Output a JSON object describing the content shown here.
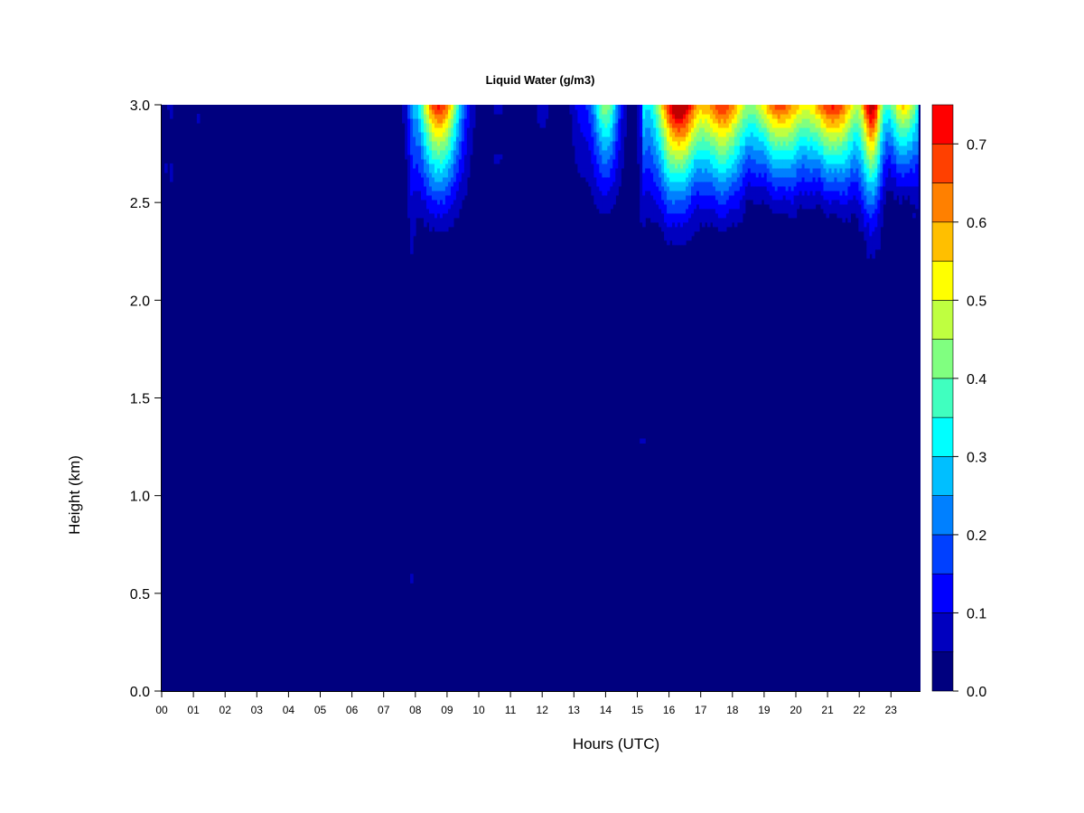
{
  "chart_data": {
    "type": "heatmap",
    "title": "Liquid Water (g/m3)",
    "xlabel": "Hours (UTC)",
    "ylabel": "Height (km)",
    "xlim": [
      0,
      23.85
    ],
    "ylim": [
      0.0,
      3.0
    ],
    "x_tick_labels": [
      "00",
      "01",
      "02",
      "03",
      "04",
      "05",
      "06",
      "07",
      "08",
      "09",
      "10",
      "11",
      "12",
      "13",
      "14",
      "15",
      "16",
      "17",
      "18",
      "19",
      "20",
      "21",
      "22",
      "23"
    ],
    "y_ticks": [
      0.0,
      0.5,
      1.0,
      1.5,
      2.0,
      2.5,
      3.0
    ],
    "y_tick_labels": [
      "0.0",
      "0.5",
      "1.0",
      "1.5",
      "2.0",
      "2.5",
      "3.0"
    ],
    "colorbar": {
      "levels": [
        0.0,
        0.05,
        0.1,
        0.15,
        0.2,
        0.25,
        0.3,
        0.35,
        0.4,
        0.45,
        0.5,
        0.55,
        0.6,
        0.65,
        0.7,
        0.75
      ],
      "colors": [
        "#00007f",
        "#0000bf",
        "#0000ff",
        "#0040ff",
        "#0080ff",
        "#00bfff",
        "#00ffff",
        "#40ffbf",
        "#80ff80",
        "#bfff40",
        "#ffff00",
        "#ffbf00",
        "#ff8000",
        "#ff4000",
        "#ff0000",
        "#bf0000",
        "#7f0000"
      ],
      "tick_values": [
        0.0,
        0.1,
        0.2,
        0.3,
        0.4,
        0.5,
        0.6,
        0.7
      ],
      "tick_labels": [
        "0.0",
        "0.1",
        "0.2",
        "0.3",
        "0.4",
        "0.5",
        "0.6",
        "0.7"
      ]
    },
    "cloud_events": [
      {
        "time": 0.25,
        "width": 0.25,
        "base_km": 2.7,
        "peak": 0.06
      },
      {
        "time": 1.1,
        "width": 0.1,
        "base_km": 2.95,
        "peak": 0.05
      },
      {
        "time": 7.9,
        "width": 0.15,
        "base_km": 0.6,
        "peak": 0.08
      },
      {
        "time": 8.75,
        "width": 0.7,
        "base_km": 2.2,
        "peak": 0.72
      },
      {
        "time": 10.6,
        "width": 0.25,
        "base_km": 2.75,
        "peak": 0.07
      },
      {
        "time": 12.0,
        "width": 0.3,
        "base_km": 2.55,
        "peak": 0.08
      },
      {
        "time": 13.2,
        "width": 0.35,
        "base_km": 2.2,
        "peak": 0.11
      },
      {
        "time": 14.0,
        "width": 0.45,
        "base_km": 2.25,
        "peak": 0.45
      },
      {
        "time": 15.15,
        "width": 0.15,
        "base_km": 1.3,
        "peak": 0.1
      },
      {
        "time": 16.3,
        "width": 0.65,
        "base_km": 2.1,
        "peak": 0.62
      },
      {
        "time": 17.7,
        "width": 0.7,
        "base_km": 2.2,
        "peak": 0.48
      },
      {
        "time": 19.5,
        "width": 0.8,
        "base_km": 2.35,
        "peak": 0.46
      },
      {
        "time": 21.2,
        "width": 0.8,
        "base_km": 2.3,
        "peak": 0.5
      },
      {
        "time": 22.4,
        "width": 0.3,
        "base_km": 2.0,
        "peak": 0.55
      },
      {
        "time": 23.4,
        "width": 0.45,
        "base_km": 2.45,
        "peak": 0.35
      }
    ]
  }
}
